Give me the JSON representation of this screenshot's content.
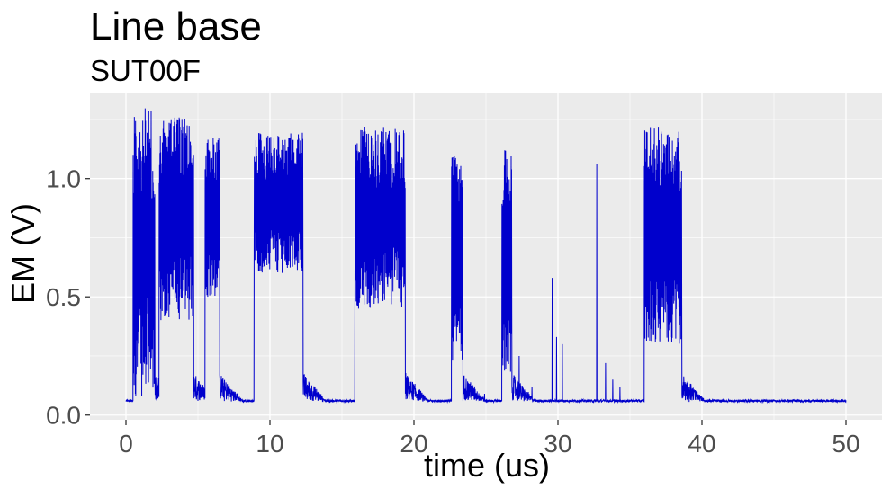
{
  "chart_data": {
    "type": "line",
    "title": "Line base",
    "subtitle": "SUT00F",
    "xlabel": "time (us)",
    "ylabel": "EM (V)",
    "xlim": [
      -2.5,
      52.5
    ],
    "ylim": [
      -0.02,
      1.36
    ],
    "xticks": [
      0,
      10,
      20,
      30,
      40,
      50
    ],
    "xtick_labels": [
      "0",
      "10",
      "20",
      "30",
      "40",
      "50"
    ],
    "yticks": [
      0.0,
      0.5,
      1.0
    ],
    "ytick_labels": [
      "0.0",
      "0.5",
      "1.0"
    ],
    "grid": true,
    "legend": "none",
    "panel_color": "#ebebeb",
    "grid_color": "#ffffff",
    "series": [
      {
        "color": "#0000cc",
        "bursts": [
          {
            "start": 0.5,
            "end": 2.0,
            "low": 0.08,
            "high": 1.3
          },
          {
            "start": 2.3,
            "end": 4.7,
            "low": 0.4,
            "high": 1.26
          },
          {
            "start": 5.5,
            "end": 6.5,
            "low": 0.5,
            "high": 1.18
          },
          {
            "start": 8.9,
            "end": 12.3,
            "low": 0.6,
            "high": 1.2
          },
          {
            "start": 15.9,
            "end": 19.4,
            "low": 0.45,
            "high": 1.22
          },
          {
            "start": 22.6,
            "end": 23.4,
            "low": 0.2,
            "high": 1.15
          },
          {
            "start": 26.1,
            "end": 26.8,
            "low": 0.15,
            "high": 1.15
          },
          {
            "start": 36.0,
            "end": 38.6,
            "low": 0.3,
            "high": 1.22
          }
        ],
        "spikes": [
          {
            "x": 29.6,
            "y": 0.58
          },
          {
            "x": 29.9,
            "y": 0.33
          },
          {
            "x": 30.3,
            "y": 0.3
          },
          {
            "x": 32.7,
            "y": 1.06
          },
          {
            "x": 33.3,
            "y": 0.22
          },
          {
            "x": 33.8,
            "y": 0.15
          },
          {
            "x": 34.3,
            "y": 0.12
          },
          {
            "x": 27.3,
            "y": 0.25
          },
          {
            "x": 28.2,
            "y": 0.12
          },
          {
            "x": 24.9,
            "y": 0.09
          }
        ],
        "baseline": 0.06
      }
    ]
  }
}
